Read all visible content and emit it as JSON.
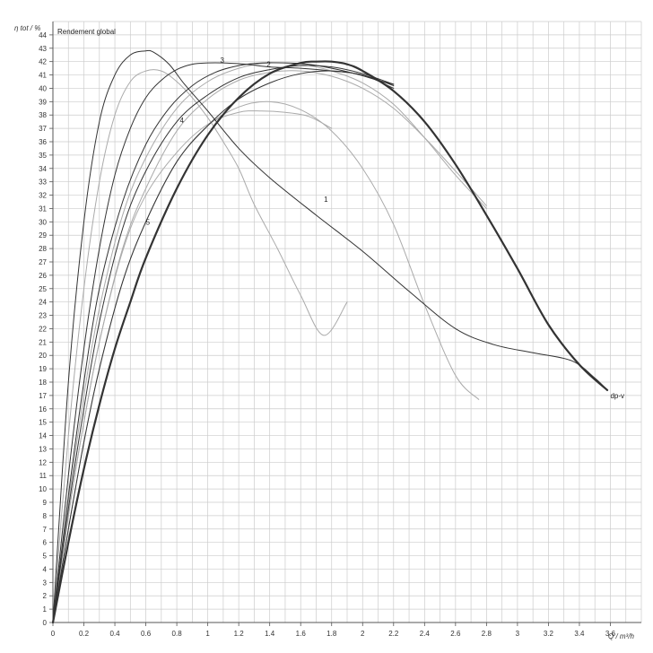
{
  "chart_data": {
    "type": "line",
    "title": "Rendement global",
    "ylabel": "η tot / %",
    "xlabel": "Q / m³/h",
    "xlim": [
      0,
      3.8
    ],
    "ylim": [
      0,
      45
    ],
    "x_ticks": [
      "0",
      "0.2",
      "0.4",
      "0.6",
      "0.8",
      "1",
      "1.2",
      "1.4",
      "1.6",
      "1.8",
      "2",
      "2.2",
      "2.4",
      "2.6",
      "2.8",
      "3",
      "3.2",
      "3.4",
      "3.6"
    ],
    "y_ticks": [
      "0",
      "1",
      "2",
      "3",
      "4",
      "5",
      "6",
      "7",
      "8",
      "9",
      "10",
      "11",
      "12",
      "13",
      "14",
      "15",
      "16",
      "17",
      "18",
      "19",
      "20",
      "21",
      "22",
      "23",
      "24",
      "25",
      "26",
      "27",
      "28",
      "29",
      "30",
      "31",
      "32",
      "33",
      "34",
      "35",
      "36",
      "37",
      "38",
      "39",
      "40",
      "41",
      "42",
      "43",
      "44"
    ],
    "grid": true,
    "colors": {
      "dark": "#333333",
      "light": "#aaaaaa",
      "grid": "#cccccc"
    },
    "series": [
      {
        "name": "1",
        "style": "dark",
        "label_at": [
          1.75,
          31.5
        ],
        "x": [
          0,
          0.1,
          0.2,
          0.3,
          0.4,
          0.5,
          0.6,
          0.65,
          0.75,
          0.85,
          1.0,
          1.2,
          1.4,
          1.7,
          2.0,
          2.3,
          2.6,
          2.85,
          3.1,
          3.35,
          3.5,
          3.58
        ],
        "y": [
          0,
          18,
          30,
          37.5,
          41,
          42.5,
          42.8,
          42.7,
          41.8,
          40.3,
          38.3,
          35.5,
          33.3,
          30.5,
          27.8,
          24.8,
          22,
          20.8,
          20.2,
          19.6,
          18.3,
          17.4
        ]
      },
      {
        "name": "",
        "style": "light",
        "x": [
          0,
          0.1,
          0.2,
          0.3,
          0.4,
          0.5,
          0.6,
          0.7,
          0.8,
          0.9,
          1.0,
          1.1,
          1.2,
          1.3,
          1.45,
          1.6,
          1.75,
          1.9
        ],
        "y": [
          0,
          14,
          25,
          33,
          38,
          40.5,
          41.3,
          41.3,
          40.5,
          39.3,
          37.8,
          36,
          34,
          31.3,
          28,
          24.5,
          21.5,
          24
        ]
      },
      {
        "name": "3",
        "style": "dark",
        "label_at": [
          1.08,
          41.9
        ],
        "x": [
          0,
          0.1,
          0.2,
          0.3,
          0.4,
          0.5,
          0.6,
          0.7,
          0.8,
          0.9,
          1.0,
          1.1,
          1.25,
          1.4,
          1.6,
          1.8,
          2.0,
          2.2
        ],
        "y": [
          0,
          11,
          20.5,
          28,
          33.5,
          37,
          39.3,
          40.6,
          41.4,
          41.8,
          41.9,
          41.9,
          41.8,
          41.6,
          41.5,
          41.3,
          41,
          40
        ]
      },
      {
        "name": "2",
        "style": "dark",
        "label_at": [
          1.38,
          41.6
        ],
        "x": [
          0,
          0.1,
          0.2,
          0.3,
          0.45,
          0.6,
          0.75,
          0.9,
          1.05,
          1.2,
          1.35,
          1.5,
          1.65,
          1.8,
          1.95,
          2.1,
          2.2
        ],
        "y": [
          0,
          9.5,
          18,
          25,
          31.5,
          35.8,
          38.5,
          40.2,
          41.2,
          41.7,
          41.9,
          41.9,
          41.8,
          41.5,
          41.1,
          40.6,
          40.3
        ]
      },
      {
        "name": "4",
        "style": "dark",
        "label_at": [
          0.82,
          37.4
        ],
        "x": [
          0,
          0.1,
          0.2,
          0.3,
          0.45,
          0.6,
          0.8,
          1.0,
          1.2,
          1.4,
          1.6,
          1.8,
          2.0,
          2.2
        ],
        "y": [
          0,
          8.5,
          16,
          22.5,
          29.5,
          33.8,
          37.5,
          39.5,
          40.8,
          41.4,
          41.7,
          41.6,
          41.1,
          40.3
        ]
      },
      {
        "name": "5",
        "style": "dark",
        "label_at": [
          0.6,
          29.8
        ],
        "x": [
          0,
          0.1,
          0.2,
          0.3,
          0.45,
          0.6,
          0.8,
          1.0,
          1.2,
          1.4,
          1.6,
          1.8,
          2.0,
          2.2
        ],
        "y": [
          0,
          7,
          13.5,
          19,
          25.5,
          30,
          34.5,
          37.2,
          39.2,
          40.4,
          41.1,
          41.3,
          41,
          40.2
        ]
      },
      {
        "name": "dp-v",
        "style": "thick",
        "label_at": [
          3.6,
          16.8
        ],
        "x": [
          0,
          0.1,
          0.2,
          0.3,
          0.4,
          0.5,
          0.6,
          0.8,
          1.0,
          1.2,
          1.4,
          1.6,
          1.7,
          1.8,
          1.9,
          2.0,
          2.2,
          2.4,
          2.6,
          2.8,
          3.0,
          3.2,
          3.4,
          3.58
        ],
        "y": [
          0,
          6,
          11.5,
          16.3,
          20.5,
          24,
          27.3,
          32.5,
          36.5,
          39.3,
          41.1,
          41.9,
          42,
          42,
          41.8,
          41.3,
          39.8,
          37.5,
          34.3,
          30.5,
          26.5,
          22.3,
          19.3,
          17.4
        ]
      },
      {
        "name": "",
        "style": "light",
        "x": [
          0,
          0.1,
          0.2,
          0.3,
          0.45,
          0.6,
          0.8,
          1.0,
          1.2,
          1.4,
          1.6,
          1.8,
          2.0,
          2.2,
          2.4,
          2.6,
          2.8
        ],
        "y": [
          0,
          9,
          17,
          23.5,
          30.5,
          34.8,
          38.5,
          40.5,
          41.5,
          41.9,
          41.8,
          41.3,
          40.4,
          38.8,
          36.3,
          33.5,
          31
        ]
      },
      {
        "name": "",
        "style": "light",
        "x": [
          0,
          0.1,
          0.2,
          0.3,
          0.45,
          0.6,
          0.8,
          1.0,
          1.2,
          1.4,
          1.6,
          1.8,
          2.0,
          2.2,
          2.4,
          2.6,
          2.8
        ],
        "y": [
          0,
          8,
          15,
          21,
          28,
          32.5,
          36.8,
          39.2,
          40.6,
          41.2,
          41.3,
          40.9,
          40,
          38.5,
          36.3,
          33.8,
          31.2
        ]
      },
      {
        "name": "",
        "style": "light",
        "x": [
          0,
          0.1,
          0.2,
          0.3,
          0.45,
          0.6,
          0.8,
          1.0,
          1.2,
          1.4,
          1.6,
          1.8,
          2.0,
          2.2,
          2.4,
          2.6,
          2.75
        ],
        "y": [
          0,
          7,
          13.5,
          19,
          25.5,
          30,
          34.5,
          37.2,
          38.6,
          39,
          38.4,
          36.8,
          34,
          29.8,
          23.8,
          18.5,
          16.7
        ]
      },
      {
        "name": "",
        "style": "light",
        "x": [
          0,
          0.1,
          0.2,
          0.3,
          0.45,
          0.6,
          0.8,
          1.0,
          1.2,
          1.35,
          1.5,
          1.65,
          1.8
        ],
        "y": [
          0,
          8,
          15,
          21,
          27.8,
          32,
          35.2,
          37.3,
          38.2,
          38.3,
          38.2,
          37.9,
          37
        ]
      }
    ]
  }
}
